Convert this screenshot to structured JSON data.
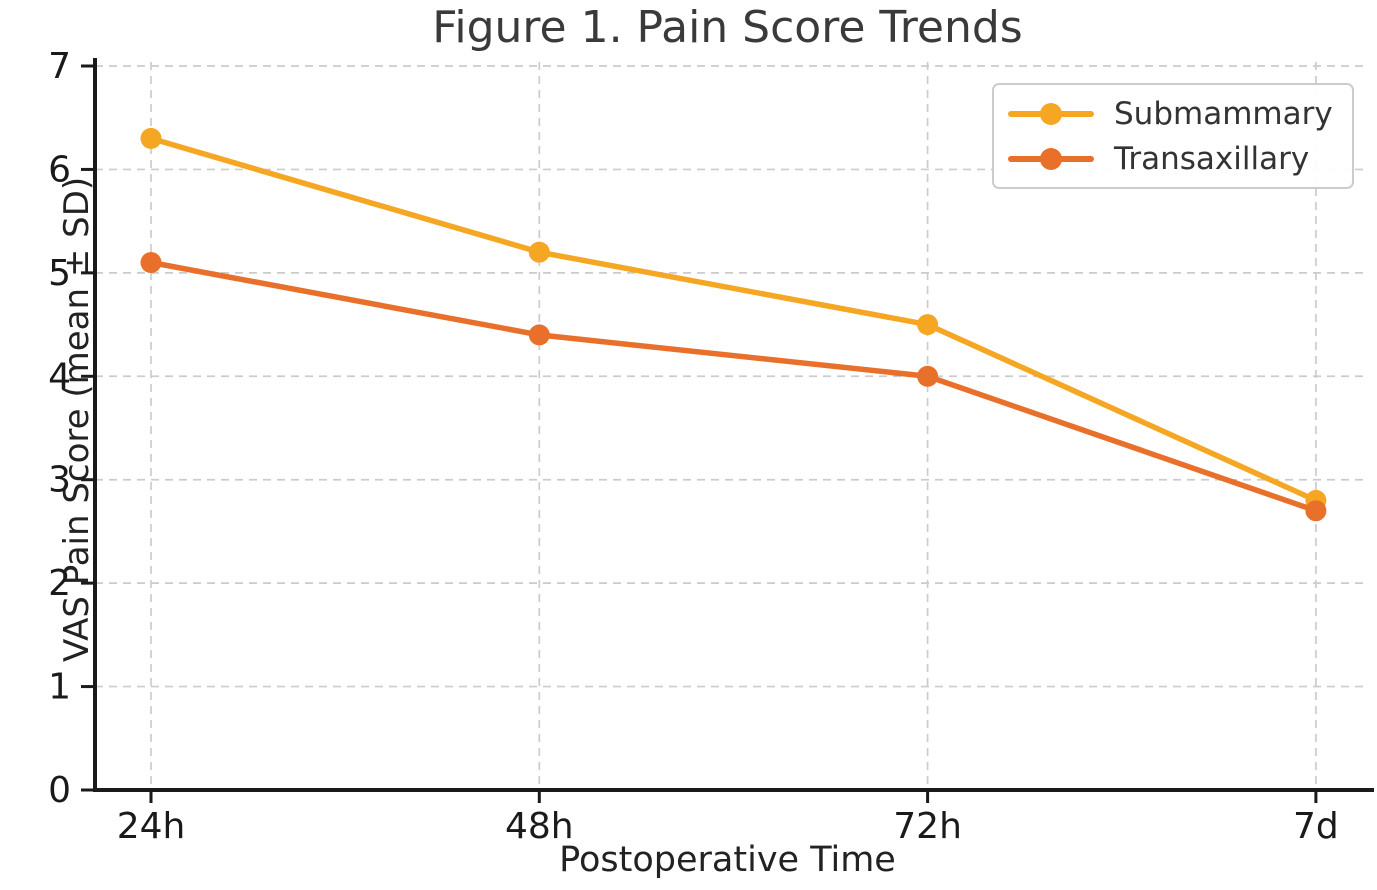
{
  "chart_data": {
    "type": "line",
    "title": "Figure 1. Pain Score Trends",
    "xlabel": "Postoperative Time",
    "ylabel": "VAS Pain Score (mean ± SD)",
    "categories": [
      "24h",
      "48h",
      "72h",
      "7d"
    ],
    "series": [
      {
        "name": "Submammary",
        "color": "#F5A623",
        "values": [
          6.3,
          5.2,
          4.5,
          2.8
        ]
      },
      {
        "name": "Transaxillary",
        "color": "#E8702A",
        "values": [
          5.1,
          4.4,
          4.0,
          2.7
        ]
      }
    ],
    "ylim": [
      0,
      7
    ],
    "yticks": [
      "0",
      "1",
      "2",
      "3",
      "4",
      "5",
      "6",
      "7"
    ],
    "grid": "dashed",
    "legend_position": "upper-right",
    "colors": {
      "grid": "#cccccc",
      "axis": "#1a1a1a",
      "tick_label": "#1a1a1a",
      "title_text": "#3a3a3a"
    }
  }
}
